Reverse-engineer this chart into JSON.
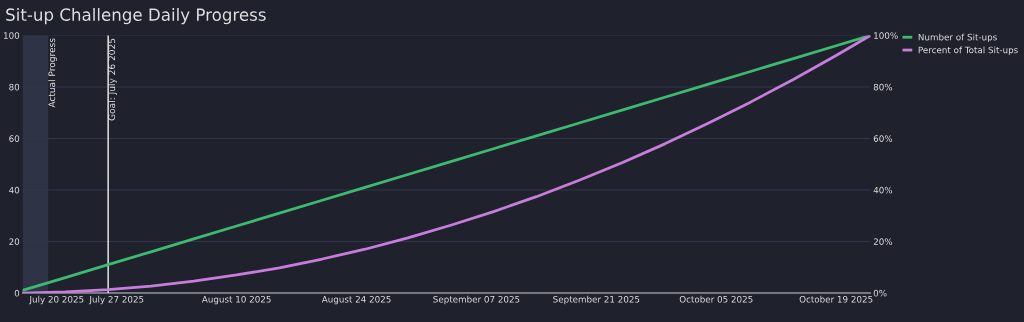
{
  "chart_data": {
    "type": "line",
    "title": "Sit-up Challenge Daily Progress",
    "x": [
      "2025-07-16",
      "2025-07-21",
      "2025-07-26",
      "2025-07-31",
      "2025-08-05",
      "2025-08-10",
      "2025-08-15",
      "2025-08-20",
      "2025-08-25",
      "2025-08-30",
      "2025-09-04",
      "2025-09-09",
      "2025-09-14",
      "2025-09-19",
      "2025-09-24",
      "2025-09-29",
      "2025-10-04",
      "2025-10-09",
      "2025-10-14",
      "2025-10-19",
      "2025-10-23"
    ],
    "series": [
      {
        "name": "Number of Sit-ups",
        "color": "#3dba6f",
        "values": [
          1,
          6,
          11,
          16,
          21,
          26,
          31,
          36,
          41,
          46,
          51,
          56,
          61,
          66,
          71,
          76,
          81,
          86,
          91,
          96,
          100
        ]
      },
      {
        "name": "Percent of Total Sit-ups",
        "color": "#c77ddb",
        "axis": "y2",
        "values": [
          0.0,
          0.4,
          1.3,
          2.7,
          4.6,
          7.0,
          9.8,
          13.2,
          17.0,
          21.4,
          26.3,
          31.6,
          37.4,
          43.8,
          50.6,
          57.9,
          65.8,
          74.1,
          82.9,
          92.2,
          100
        ]
      }
    ],
    "xlim": [
      "2025-07-16",
      "2025-10-23"
    ],
    "xticks": [
      {
        "value": "2025-07-20",
        "label": "July 20 2025"
      },
      {
        "value": "2025-07-27",
        "label": "July 27 2025"
      },
      {
        "value": "2025-08-10",
        "label": "August 10 2025"
      },
      {
        "value": "2025-08-24",
        "label": "August 24 2025"
      },
      {
        "value": "2025-09-07",
        "label": "September 07 2025"
      },
      {
        "value": "2025-09-21",
        "label": "September 21 2025"
      },
      {
        "value": "2025-10-05",
        "label": "October 05 2025"
      },
      {
        "value": "2025-10-19",
        "label": "October 19 2025"
      }
    ],
    "ylim": [
      0,
      100
    ],
    "yticks": [
      0,
      20,
      40,
      60,
      80,
      100
    ],
    "y2lim": [
      0,
      100
    ],
    "y2ticks": [
      {
        "value": 0,
        "label": "0%"
      },
      {
        "value": 20,
        "label": "20%"
      },
      {
        "value": 40,
        "label": "40%"
      },
      {
        "value": 60,
        "label": "60%"
      },
      {
        "value": 80,
        "label": "80%"
      },
      {
        "value": 100,
        "label": "100%"
      }
    ],
    "ref_lines": [
      {
        "axis": "x",
        "value": "2025-07-26",
        "label": "Goal: July 26 2025",
        "color": "#d0d0d0"
      }
    ],
    "bands": [
      {
        "axis": "x",
        "from": "2025-07-16",
        "to": "2025-07-19",
        "label": "Actual Progress",
        "color": "#2e3446"
      }
    ],
    "grid": "y",
    "legend": "top right",
    "marker": "none",
    "line_style": "solid"
  }
}
